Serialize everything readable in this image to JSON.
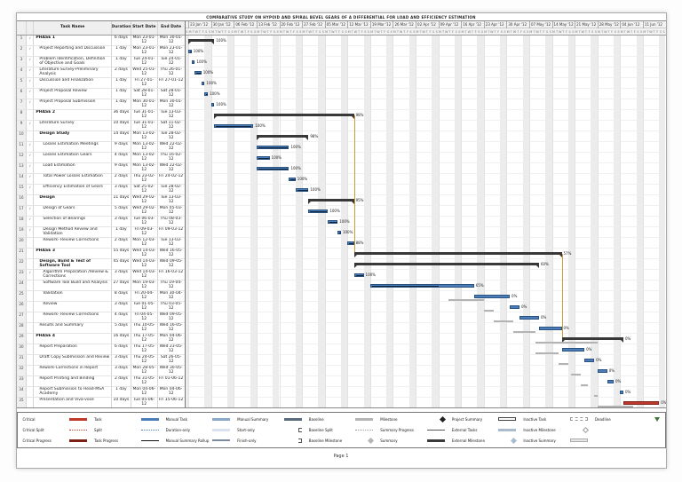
{
  "page": {
    "title": "COMPARATIVE STUDY ON HYPOID AND SPIRAL BEVEL GEARS OF A DIFFERENTIAL FOR LOAD AND EFFICIENCY ESTIMATION",
    "footer": "Page 1"
  },
  "table": {
    "headers": {
      "id": "",
      "indicator": "",
      "name": "Task Name",
      "duration": "Duration",
      "start": "Start Date",
      "end": "End Date"
    }
  },
  "timeline": {
    "start_date": "22-01-12",
    "total_days": 148,
    "day_letters": "SMTWTFS",
    "week_labels": [
      "23 Jan '12",
      "30 Jan '12",
      "06 Feb '12",
      "13 Feb '12",
      "20 Feb '12",
      "27 Feb '12",
      "05 Mar '12",
      "12 Mar '12",
      "19 Mar '12",
      "26 Mar '12",
      "02 Apr '12",
      "09 Apr '12",
      "16 Apr '12",
      "23 Apr '12",
      "30 Apr '12",
      "07 May '12",
      "14 May '12",
      "21 May '12",
      "28 May '12",
      "04 Jun '12",
      "11 Jun '12"
    ]
  },
  "colors": {
    "task": "#4a7ebb",
    "critical": "#c0392b",
    "summary": "#383838",
    "baseline": "#b3b3b3",
    "link": "#cf9a3c",
    "weekend": "#ececec"
  },
  "chart_data": {
    "type": "gantt",
    "tasks": [
      {
        "id": 1,
        "name": "PHASE 1",
        "duration": "6 days",
        "start": "Mon 23-01-12",
        "end": "Mon 30-01-12",
        "type": "summary",
        "indent": 0,
        "pct": 100
      },
      {
        "id": 2,
        "name": "Project Reporting and Discussion",
        "duration": "1 day",
        "start": "Mon 23-01-12",
        "end": "Mon 23-01-12",
        "indent": 1,
        "pct": 100
      },
      {
        "id": 3,
        "name": "Problem Identification, Definition of Objective and Goals",
        "duration": "1 day",
        "start": "Tue 24-01-12",
        "end": "Tue 24-01-12",
        "indent": 1,
        "pct": 100
      },
      {
        "id": 4,
        "name": "Literature Survey-Preliminary Analysis",
        "duration": "2 days",
        "start": "Wed 25-01-12",
        "end": "Thu 26-01-12",
        "indent": 1,
        "pct": 100
      },
      {
        "id": 5,
        "name": "Discussion and Finalization",
        "duration": "1 day",
        "start": "Fri 27-01-12",
        "end": "Fri 27-01-12",
        "indent": 1,
        "pct": 100
      },
      {
        "id": 6,
        "name": "Project Proposal Review",
        "duration": "1 day",
        "start": "Sat 28-01-12",
        "end": "Sat 28-01-12",
        "indent": 1,
        "pct": 100
      },
      {
        "id": 7,
        "name": "Project Proposal Submission",
        "duration": "1 day",
        "start": "Mon 30-01-12",
        "end": "Mon 30-01-12",
        "indent": 1,
        "pct": 100
      },
      {
        "id": 8,
        "name": "PHASE 2",
        "duration": "36 days",
        "start": "Tue 31-01-12",
        "end": "Tue 13-03-12",
        "type": "summary",
        "indent": 0,
        "pct": 98
      },
      {
        "id": 9,
        "name": "Literature Survey",
        "duration": "10 days",
        "start": "Tue 31-01-12",
        "end": "Sat 11-02-12",
        "indent": 1,
        "pct": 100
      },
      {
        "id": 10,
        "name": "Design Study",
        "duration": "14 days",
        "start": "Mon 13-02-12",
        "end": "Tue 28-02-12",
        "type": "summary",
        "indent": 1,
        "pct": 98
      },
      {
        "id": 11,
        "name": "Losses Estimation Meetings",
        "duration": "9 days",
        "start": "Mon 13-02-12",
        "end": "Wed 22-02-12",
        "indent": 2,
        "pct": 100
      },
      {
        "id": 12,
        "name": "Losses Estimation Gears",
        "duration": "4 days",
        "start": "Mon 13-02-12",
        "end": "Thu 16-02-12",
        "indent": 2,
        "pct": 100
      },
      {
        "id": 13,
        "name": "Load Estimation",
        "duration": "9 days",
        "start": "Mon 13-02-12",
        "end": "Wed 22-02-12",
        "indent": 2,
        "pct": 100
      },
      {
        "id": 14,
        "name": "Total Power Losses Estimation",
        "duration": "2 days",
        "start": "Thu 23-02-12",
        "end": "Fri 24-02-12",
        "indent": 2,
        "pct": 100
      },
      {
        "id": 15,
        "name": "Efficiency Estimation of Gears",
        "duration": "3 days",
        "start": "Sat 25-02-12",
        "end": "Tue 28-02-12",
        "indent": 2,
        "pct": 100
      },
      {
        "id": 16,
        "name": "Design",
        "duration": "11 days",
        "start": "Wed 29-02-12",
        "end": "Tue 13-03-12",
        "type": "summary",
        "indent": 1,
        "pct": 95
      },
      {
        "id": 17,
        "name": "Design of Gears",
        "duration": "5 days",
        "start": "Wed 29-02-12",
        "end": "Mon 05-03-12",
        "indent": 2,
        "pct": 100
      },
      {
        "id": 18,
        "name": "Selection of Bearings",
        "duration": "3 days",
        "start": "Tue 06-03-12",
        "end": "Thu 08-03-12",
        "indent": 2,
        "pct": 100
      },
      {
        "id": 19,
        "name": "Design Method Review and Validation",
        "duration": "1 day",
        "start": "Fri 09-03-12",
        "end": "Fri 09-03-12",
        "indent": 2,
        "pct": 100
      },
      {
        "id": 20,
        "name": "Rework- Review Corrections",
        "duration": "2 days",
        "start": "Mon 12-03-12",
        "end": "Tue 13-03-12",
        "indent": 2,
        "pct": 88
      },
      {
        "id": 21,
        "name": "PHASE 3",
        "duration": "55 days",
        "start": "Wed 14-03-12",
        "end": "Wed 16-05-12",
        "type": "summary",
        "indent": 0,
        "pct": 57
      },
      {
        "id": 22,
        "name": "Design, Build & Test of Software Tool",
        "duration": "45 days",
        "start": "Wed 14-03-12",
        "end": "Wed 09-05-12",
        "type": "summary",
        "indent": 1,
        "pct": 60
      },
      {
        "id": 23,
        "name": "Algorithm Preparation /Review & Corrections",
        "duration": "3 days",
        "start": "Wed 14-03-12",
        "end": "Fri 16-03-12",
        "indent": 2,
        "pct": 100
      },
      {
        "id": 24,
        "name": "Software Tool Build and Analysis",
        "duration": "27 days",
        "start": "Mon 19-03-12",
        "end": "Thu 19-04-12",
        "indent": 2,
        "pct": 65
      },
      {
        "id": 25,
        "name": "Validation",
        "duration": "8 days",
        "start": "Fri 20-04-12",
        "end": "Mon 30-04-12",
        "indent": 2,
        "pct": 0
      },
      {
        "id": 26,
        "name": "Review",
        "duration": "3 days",
        "start": "Tue 01-05-12",
        "end": "Thu 03-05-12",
        "indent": 2,
        "pct": 0
      },
      {
        "id": 27,
        "name": "Rework- Review Corrections",
        "duration": "4 days",
        "start": "Fri 04-05-12",
        "end": "Wed 09-05-12",
        "indent": 2,
        "pct": 0
      },
      {
        "id": 28,
        "name": "Results and Summary",
        "duration": "5 days",
        "start": "Thu 10-05-12",
        "end": "Wed 16-05-12",
        "indent": 1,
        "pct": 0
      },
      {
        "id": 29,
        "name": "PHASE 4",
        "duration": "16 days",
        "start": "Thu 17-05-12",
        "end": "Mon 04-06-12",
        "type": "summary",
        "indent": 0,
        "pct": 0
      },
      {
        "id": 30,
        "name": "Report Preparation",
        "duration": "6 days",
        "start": "Thu 17-05-12",
        "end": "Wed 23-05-12",
        "indent": 1,
        "pct": 0
      },
      {
        "id": 31,
        "name": "Draft Copy Submission and Review",
        "duration": "3 days",
        "start": "Thu 24-05-12",
        "end": "Sat 26-05-12",
        "indent": 1,
        "pct": 0
      },
      {
        "id": 32,
        "name": "Rework-Corrections in Report",
        "duration": "3 days",
        "start": "Mon 28-05-12",
        "end": "Wed 30-05-12",
        "indent": 1,
        "pct": 0
      },
      {
        "id": 33,
        "name": "Report Printing and Binding",
        "duration": "2 days",
        "start": "Thu 31-05-12",
        "end": "Fri 01-06-12",
        "indent": 1,
        "pct": 0
      },
      {
        "id": 34,
        "name": "Report Submission to Head-MSA Academy",
        "duration": "1 day",
        "start": "Mon 04-06-12",
        "end": "Mon 04-06-12",
        "indent": 1,
        "pct": 0
      },
      {
        "id": 35,
        "name": "Presentation and Viva-voce",
        "duration": "10 days",
        "start": "Tue 05-06-12",
        "end": "Fri 15-06-12",
        "type": "critical",
        "indent": 1,
        "pct": 0
      }
    ],
    "links": [
      {
        "date": "14-03-12",
        "from_row": 8,
        "to_row": 21
      },
      {
        "date": "17-05-12",
        "from_row": 21,
        "to_row": 29
      }
    ]
  },
  "legend": {
    "items": [
      {
        "label": "Critical",
        "swatch": "bar-critical"
      },
      {
        "label": "Critical Split",
        "swatch": "dots-critical"
      },
      {
        "label": "Critical Progress",
        "swatch": "bar-critical-progress"
      },
      {
        "label": "Task",
        "swatch": "bar-task"
      },
      {
        "label": "Split",
        "swatch": "dots-task"
      },
      {
        "label": "Task Progress",
        "swatch": "line-progress"
      },
      {
        "label": "Manual Task",
        "swatch": "bar-manual"
      },
      {
        "label": "Duration-only",
        "swatch": "bar-duration"
      },
      {
        "label": "Manual Summary Rollup",
        "swatch": "bar-rollup"
      },
      {
        "label": "Manual Summary",
        "swatch": "bar-manual-summary"
      },
      {
        "label": "Start-only",
        "swatch": "bracket-start"
      },
      {
        "label": "Finish-only",
        "swatch": "bracket-finish"
      },
      {
        "label": "Baseline",
        "swatch": "bar-baseline"
      },
      {
        "label": "Baseline Split",
        "swatch": "dots-baseline"
      },
      {
        "label": "Baseline Milestone",
        "swatch": "diamond-baseline"
      },
      {
        "label": "Milestone",
        "swatch": "diamond-milestone"
      },
      {
        "label": "Summary Progress",
        "swatch": "line-summary-progress"
      },
      {
        "label": "Summary",
        "swatch": "bar-summary"
      },
      {
        "label": "Project Summary",
        "swatch": "bar-project-summary"
      },
      {
        "label": "External Tasks",
        "swatch": "bar-external"
      },
      {
        "label": "External Milestone",
        "swatch": "diamond-external"
      },
      {
        "label": "Inactive Task",
        "swatch": "bar-inactive"
      },
      {
        "label": "Inactive Milestone",
        "swatch": "diamond-inactive"
      },
      {
        "label": "Inactive Summary",
        "swatch": "bar-inactive-summary"
      },
      {
        "label": "Deadline",
        "swatch": "arrow-deadline"
      }
    ]
  }
}
